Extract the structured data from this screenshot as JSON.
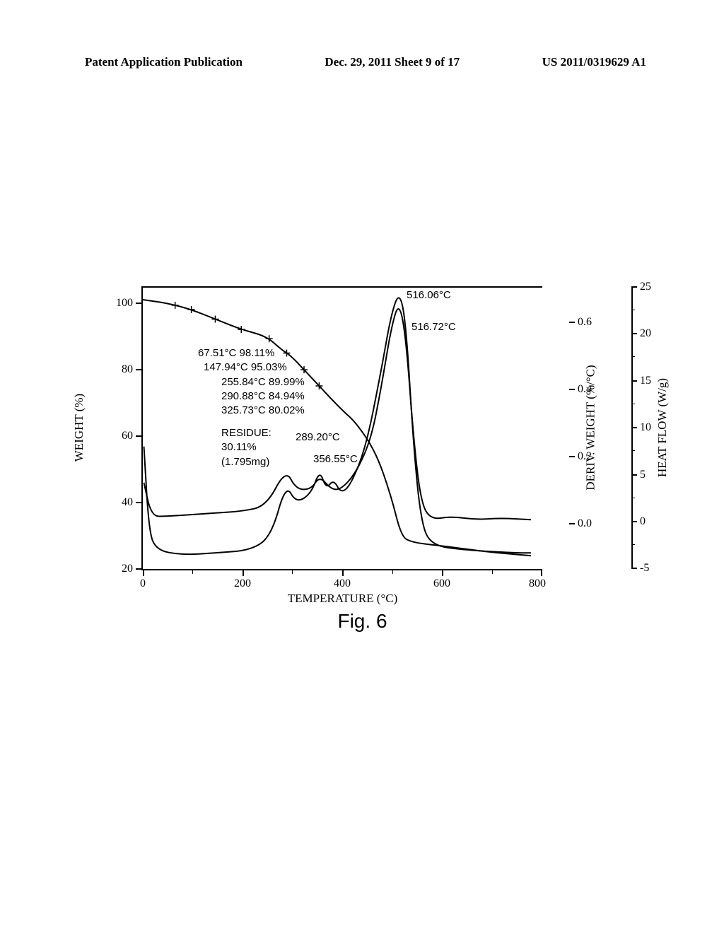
{
  "header": {
    "left": "Patent Application Publication",
    "center": "Dec. 29, 2011  Sheet 9 of 17",
    "right": "US 2011/0319629 A1"
  },
  "chart": {
    "type": "multi-axis-line",
    "background_color": "#ffffff",
    "line_color": "#000000",
    "line_width": 2,
    "x_axis": {
      "title": "TEMPERATURE (°C)",
      "min": 0,
      "max": 800,
      "ticks": [
        0,
        200,
        400,
        600,
        800
      ],
      "fontsize": 16
    },
    "y_axis_left": {
      "title": "WEIGHT (%)",
      "min": 20,
      "max": 105,
      "ticks": [
        20,
        40,
        60,
        80,
        100
      ],
      "fontsize": 16
    },
    "y_axis_right1": {
      "title": "DERIV. WEIGHT (%/°C)",
      "ticks": [
        0.0,
        0.2,
        0.4,
        0.6
      ],
      "fontsize": 16
    },
    "y_axis_right2": {
      "title": "HEAT FLOW (W/g)",
      "min": -5,
      "max": 25,
      "ticks": [
        -5,
        0,
        5,
        10,
        15,
        20,
        25
      ],
      "fontsize": 16
    },
    "weight_curve": {
      "points": [
        [
          0,
          101
        ],
        [
          50,
          100
        ],
        [
          100,
          98
        ],
        [
          150,
          95
        ],
        [
          200,
          92
        ],
        [
          250,
          90
        ],
        [
          280,
          86
        ],
        [
          300,
          84
        ],
        [
          325,
          80
        ],
        [
          350,
          76
        ],
        [
          400,
          68
        ],
        [
          430,
          64
        ],
        [
          470,
          55
        ],
        [
          500,
          42
        ],
        [
          520,
          30
        ],
        [
          540,
          28
        ],
        [
          600,
          27
        ],
        [
          700,
          25
        ],
        [
          780,
          24
        ]
      ]
    },
    "heat_flow_curve": {
      "points": [
        [
          5,
          8
        ],
        [
          15,
          -1
        ],
        [
          30,
          -3
        ],
        [
          80,
          -3.5
        ],
        [
          150,
          -3.3
        ],
        [
          220,
          -3
        ],
        [
          260,
          -1.5
        ],
        [
          289,
          4
        ],
        [
          310,
          2
        ],
        [
          340,
          3
        ],
        [
          357,
          5.5
        ],
        [
          370,
          3.5
        ],
        [
          385,
          4.5
        ],
        [
          400,
          3
        ],
        [
          420,
          4
        ],
        [
          450,
          8
        ],
        [
          480,
          16
        ],
        [
          500,
          22
        ],
        [
          517,
          24.5
        ],
        [
          530,
          21
        ],
        [
          545,
          8
        ],
        [
          560,
          0
        ],
        [
          580,
          -2.5
        ],
        [
          650,
          -3
        ],
        [
          750,
          -3.3
        ],
        [
          780,
          -3.3
        ]
      ]
    },
    "deriv_weight_curve": {
      "points": [
        [
          5,
          0.12
        ],
        [
          20,
          0.02
        ],
        [
          50,
          0.02
        ],
        [
          100,
          0.025
        ],
        [
          150,
          0.03
        ],
        [
          200,
          0.035
        ],
        [
          250,
          0.05
        ],
        [
          289,
          0.16
        ],
        [
          310,
          0.1
        ],
        [
          340,
          0.1
        ],
        [
          357,
          0.14
        ],
        [
          380,
          0.1
        ],
        [
          400,
          0.1
        ],
        [
          430,
          0.15
        ],
        [
          460,
          0.25
        ],
        [
          480,
          0.4
        ],
        [
          500,
          0.58
        ],
        [
          516,
          0.66
        ],
        [
          530,
          0.55
        ],
        [
          545,
          0.25
        ],
        [
          560,
          0.06
        ],
        [
          580,
          0.01
        ],
        [
          620,
          0.02
        ],
        [
          670,
          0.01
        ],
        [
          720,
          0.015
        ],
        [
          780,
          0.01
        ]
      ]
    },
    "annotations": {
      "weight_points": [
        "67.51°C 98.11%",
        "147.94°C 95.03%",
        "255.84°C 89.99%",
        "290.88°C 84.94%",
        "325.73°C 80.02%"
      ],
      "residue": [
        "RESIDUE:",
        "30.11%",
        "(1.795mg)"
      ],
      "peak1": "289.20°C",
      "peak2": "356.55°C",
      "peak3a": "516.06°C",
      "peak3b": "516.72°C",
      "deriv_zero": "0.0"
    },
    "figure_label": "Fig. 6"
  }
}
